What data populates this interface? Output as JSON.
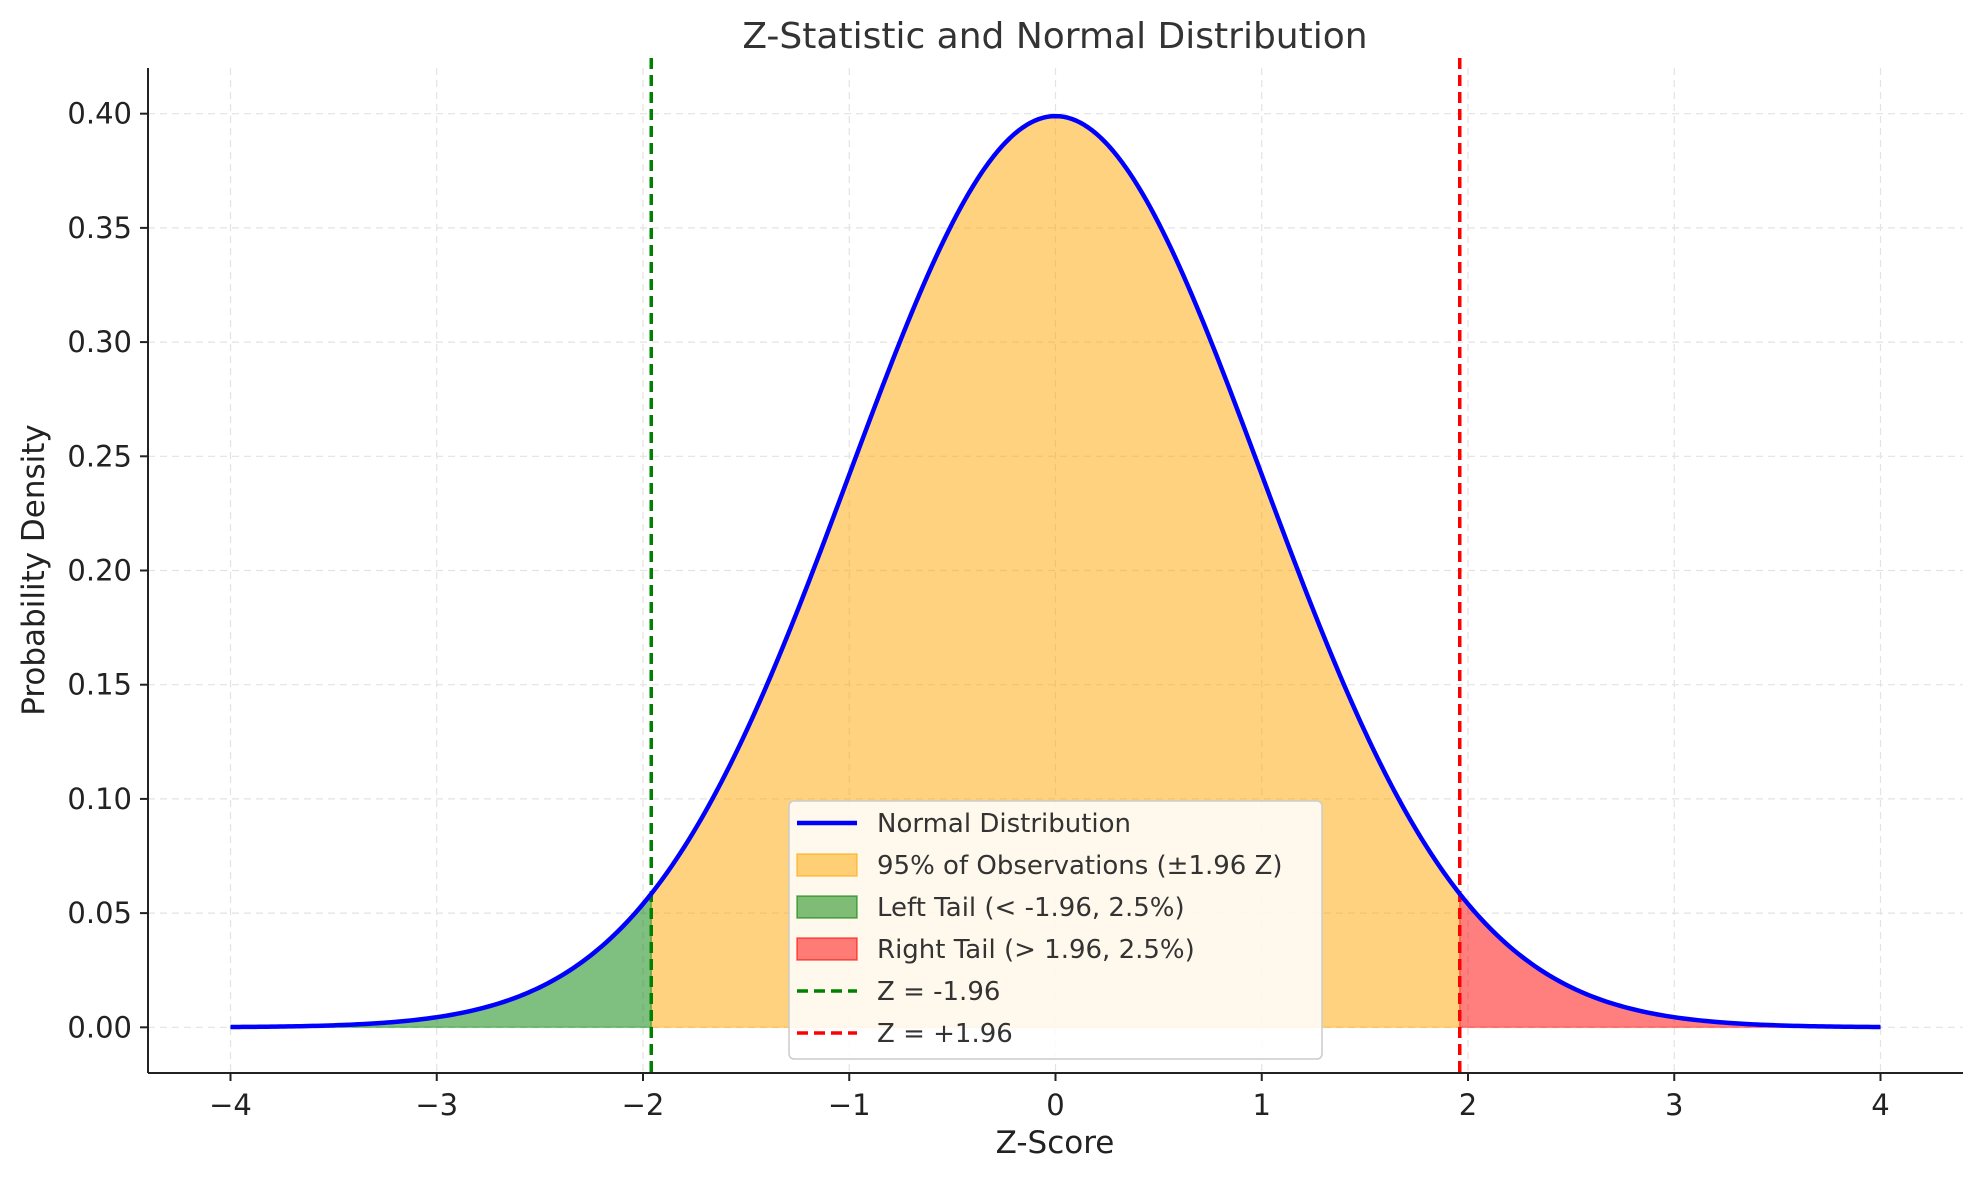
{
  "chart_data": {
    "type": "area",
    "title": "Z-Statistic and Normal Distribution",
    "xlabel": "Z-Score",
    "ylabel": "Probability Density",
    "xlim": [
      -4.4,
      4.4
    ],
    "ylim": [
      -0.02,
      0.42
    ],
    "grid": true,
    "legend_position": "bottom-center",
    "x_ticks": [
      -4,
      -3,
      -2,
      -1,
      0,
      1,
      2,
      3,
      4
    ],
    "x_tick_labels": [
      "−4",
      "−3",
      "−2",
      "−1",
      "0",
      "1",
      "2",
      "3",
      "4"
    ],
    "y_ticks": [
      0.0,
      0.05,
      0.1,
      0.15,
      0.2,
      0.25,
      0.3,
      0.35,
      0.4
    ],
    "y_tick_labels": [
      "0.00",
      "0.05",
      "0.10",
      "0.15",
      "0.20",
      "0.25",
      "0.30",
      "0.35",
      "0.40"
    ],
    "curve": {
      "name": "Normal Distribution",
      "color": "#0000ff",
      "x_range": [
        -4,
        4
      ],
      "x": [
        -4.0,
        -3.5,
        -3.0,
        -2.5,
        -2.0,
        -1.96,
        -1.5,
        -1.0,
        -0.5,
        0.0,
        0.5,
        1.0,
        1.5,
        1.96,
        2.0,
        2.5,
        3.0,
        3.5,
        4.0
      ],
      "y": [
        0.0001,
        0.0009,
        0.0044,
        0.0175,
        0.054,
        0.0584,
        0.1295,
        0.242,
        0.3521,
        0.3989,
        0.3521,
        0.242,
        0.1295,
        0.0584,
        0.054,
        0.0175,
        0.0044,
        0.0009,
        0.0001
      ]
    },
    "regions": [
      {
        "name": "95% of Observations (±1.96 Z)",
        "from": -1.96,
        "to": 1.96,
        "color": "#ffa500",
        "opacity": 0.5
      },
      {
        "name": "Left Tail (< -1.96, 2.5%)",
        "from": -4,
        "to": -1.96,
        "color": "#008000",
        "opacity": 0.5
      },
      {
        "name": "Right Tail (> 1.96, 2.5%)",
        "from": 1.96,
        "to": 4,
        "color": "#ff0000",
        "opacity": 0.5
      }
    ],
    "vlines": [
      {
        "name": "Z = -1.96",
        "x": -1.96,
        "color": "#008000",
        "style": "dashed"
      },
      {
        "name": "Z = +1.96",
        "x": 1.96,
        "color": "#ff0000",
        "style": "dashed"
      }
    ]
  }
}
